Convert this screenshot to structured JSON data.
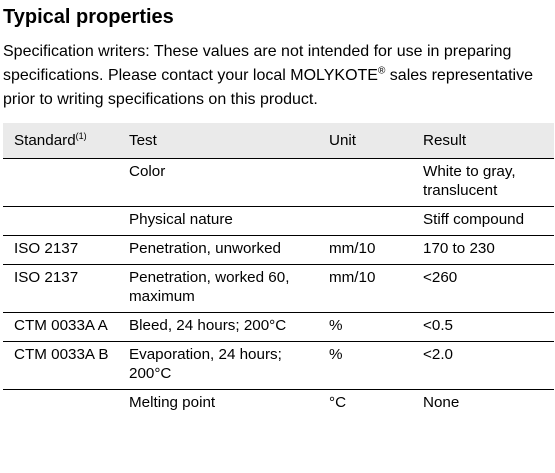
{
  "heading": "Typical properties",
  "intro": {
    "text": "Specification writers: These values are not intended for use in preparing specifications. Please contact your local MOLYKOTE",
    "registered_mark": "®",
    "text_after": " sales representative prior to writing specifications on this product."
  },
  "table": {
    "headers": {
      "standard": "Standard",
      "standard_note": "(1)",
      "test": "Test",
      "unit": "Unit",
      "result": "Result"
    },
    "rows": [
      {
        "standard": "",
        "test": "Color",
        "unit": "",
        "result": "White to gray, translucent"
      },
      {
        "standard": "",
        "test": "Physical nature",
        "unit": "",
        "result": "Stiff compound"
      },
      {
        "standard": "ISO 2137",
        "test": "Penetration, unworked",
        "unit": "mm/10",
        "result": "170 to 230"
      },
      {
        "standard": "ISO 2137",
        "test": "Penetration, worked 60, maximum",
        "unit": "mm/10",
        "result": "<260"
      },
      {
        "standard": "CTM 0033A A",
        "test": "Bleed, 24 hours; 200°C",
        "unit": "%",
        "result": "<0.5"
      },
      {
        "standard": "CTM 0033A B",
        "test": "Evaporation, 24 hours; 200°C",
        "unit": "%",
        "result": "<2.0"
      },
      {
        "standard": "",
        "test": "Melting point",
        "unit": "°C",
        "result": "None"
      }
    ]
  }
}
